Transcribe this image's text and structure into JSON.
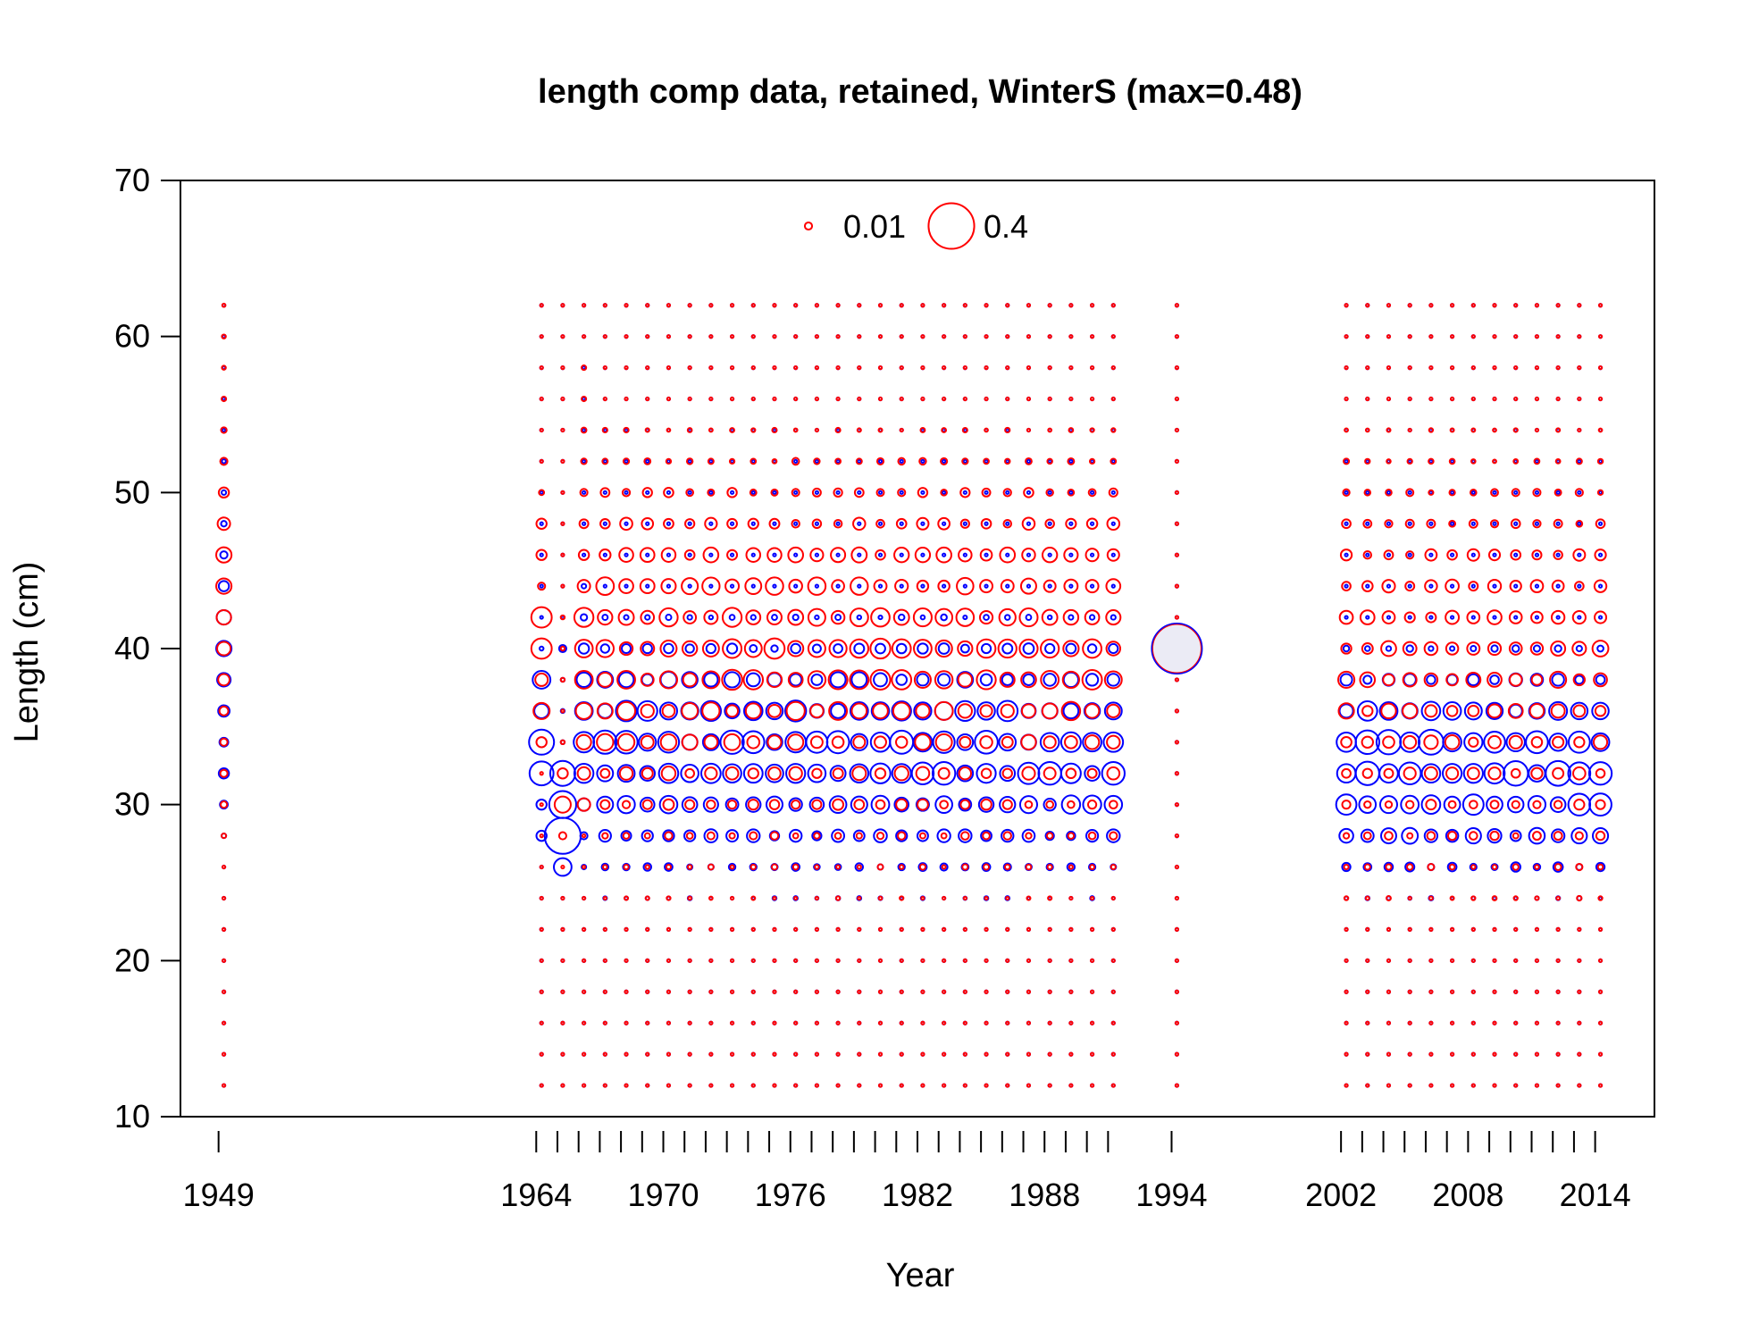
{
  "chart_data": {
    "type": "scatter",
    "title": "length comp data, retained, WinterS (max=0.48)",
    "xlabel": "Year",
    "ylabel": "Length (cm)",
    "xlim": [
      1947.2,
      2016.8
    ],
    "ylim": [
      10,
      70
    ],
    "x_tick_labels": [
      "1949",
      "1964",
      "1970",
      "1976",
      "1982",
      "1988",
      "1994",
      "2002",
      "2008",
      "2014"
    ],
    "x_tick_marks": [
      1949,
      1964,
      1965,
      1966,
      1967,
      1968,
      1969,
      1970,
      1971,
      1972,
      1973,
      1974,
      1975,
      1976,
      1977,
      1978,
      1979,
      1980,
      1981,
      1982,
      1983,
      1984,
      1985,
      1986,
      1987,
      1988,
      1989,
      1990,
      1991,
      1994,
      2002,
      2003,
      2004,
      2005,
      2006,
      2007,
      2008,
      2009,
      2010,
      2011,
      2012,
      2013,
      2014
    ],
    "y_ticks": [
      10,
      20,
      30,
      40,
      50,
      60,
      70
    ],
    "grid": false,
    "legend": {
      "position": "top",
      "entries": [
        {
          "label": "0.01",
          "value": 0.01
        },
        {
          "label": "0.4",
          "value": 0.4
        }
      ]
    },
    "max_value": 0.48,
    "length_bins": [
      12,
      14,
      16,
      18,
      20,
      22,
      24,
      26,
      28,
      30,
      32,
      34,
      36,
      38,
      40,
      42,
      44,
      46,
      48,
      50,
      52,
      54,
      56,
      58,
      60,
      62
    ],
    "series": [
      {
        "color": "#ff0000",
        "marker": "open-circle"
      },
      {
        "color": "#0000ff",
        "marker": "open-circle"
      }
    ],
    "note_sizes": "circle area proportional to proportion at length",
    "years": [
      {
        "year": 1949,
        "offset": 0.25,
        "red": {
          "28": 0.004,
          "30": 0.008,
          "32": 0.01,
          "34": 0.01,
          "36": 0.015,
          "38": 0.025,
          "40": 0.035,
          "42": 0.04,
          "44": 0.045,
          "46": 0.045,
          "48": 0.03,
          "50": 0.02,
          "52": 0.01,
          "54": 0.006,
          "56": 0.004,
          "58": 0.003,
          "60": 0.003,
          "62": 0.002
        },
        "blue": {
          "28": 0.004,
          "30": 0.012,
          "32": 0.02,
          "34": 0.015,
          "36": 0.025,
          "38": 0.035,
          "40": 0.045,
          "42": 0.04,
          "44": 0.02,
          "46": 0.01,
          "48": 0.006,
          "50": 0.004,
          "52": 0.003
        }
      },
      {
        "year": 1964,
        "offset": 0.25,
        "red": {
          "34": 0.02,
          "36": 0.05,
          "38": 0.03,
          "40": 0.08,
          "42": 0.08,
          "44": 0.01,
          "46": 0.02,
          "48": 0.02,
          "50": 0.005
        },
        "blue": {
          "28": 0.02,
          "30": 0.02,
          "32": 0.11,
          "34": 0.12,
          "36": 0.04,
          "38": 0.06,
          "40": 0.003
        }
      },
      {
        "year": 1965,
        "offset": 0.25,
        "red": {
          "28": 0.01,
          "30": 0.05,
          "32": 0.02,
          "34": 0.003,
          "38": 0.003,
          "40": 0.003,
          "42": 0.003
        },
        "blue": {
          "26": 0.06,
          "28": 0.25,
          "30": 0.14,
          "32": 0.12,
          "34": 0.003,
          "36": 0.003,
          "38": 0.003,
          "40": 0.01
        }
      },
      {
        "year": 1966,
        "offset": 0.25,
        "red": {
          "30": 0.03,
          "32": 0.03,
          "34": 0.04,
          "36": 0.05,
          "38": 0.06,
          "40": 0.06,
          "42": 0.07,
          "44": 0.03,
          "46": 0.02,
          "48": 0.015,
          "50": 0.01,
          "52": 0.006,
          "54": 0.005,
          "56": 0.004,
          "58": 0.004
        },
        "blue": {
          "26": 0.004,
          "28": 0.01,
          "30": 0.03,
          "32": 0.07,
          "34": 0.08,
          "36": 0.06,
          "38": 0.04,
          "40": 0.02,
          "42": 0.008,
          "44": 0.004
        }
      }
    ]
  }
}
